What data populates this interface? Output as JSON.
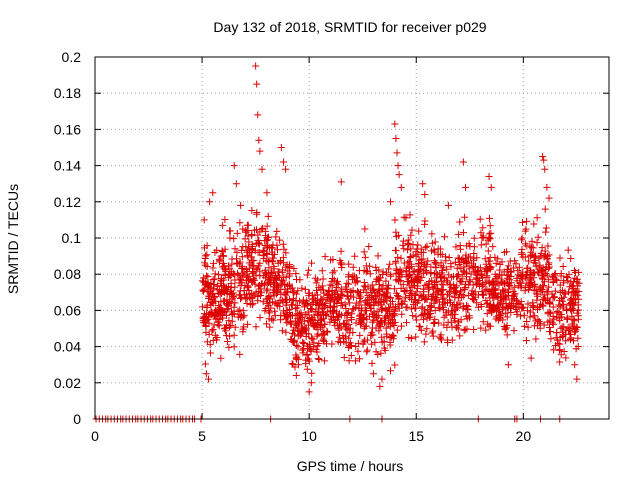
{
  "chart_data": {
    "type": "scatter",
    "title": "Day 132 of 2018, SRMTID for receiver p029",
    "xlabel": "GPS time / hours",
    "ylabel": "SRMTID / TECUs",
    "xlim": [
      0,
      24
    ],
    "ylim": [
      0,
      0.2
    ],
    "grid": true,
    "marker": "+",
    "xticks": [
      0,
      5,
      10,
      15,
      20
    ],
    "xtick_labels": [
      "0",
      "5",
      "10",
      "15",
      "20"
    ],
    "yticks": [
      0,
      0.02,
      0.04,
      0.06,
      0.08,
      0.1,
      0.12,
      0.14,
      0.16,
      0.18,
      0.2
    ],
    "ytick_labels": [
      "0",
      "0.02",
      "0.04",
      "0.06",
      "0.08",
      "0.1",
      "0.12",
      "0.14",
      "0.16",
      "0.18",
      "0.2"
    ],
    "series": [
      {
        "name": "SRMTID p029",
        "color": "#dd0000",
        "zero_x": [
          0.05,
          0.2,
          0.35,
          0.5,
          0.6,
          0.75,
          0.9,
          1.05,
          1.2,
          1.3,
          1.45,
          1.6,
          1.75,
          1.9,
          2.0,
          2.15,
          2.3,
          2.45,
          2.6,
          2.7,
          2.85,
          3.0,
          3.15,
          3.3,
          3.4,
          3.55,
          3.7,
          3.85,
          4.0,
          4.1,
          4.25,
          4.4,
          4.55,
          4.65,
          4.95,
          8.2,
          11.9,
          13.4,
          17.9,
          19.6,
          19.7,
          20.8,
          21.7
        ],
        "x": [
          5.1,
          5.15,
          5.2,
          5.3,
          5.35,
          5.5,
          5.6,
          5.7,
          6.5,
          6.6,
          6.8,
          6.9,
          7.5,
          7.55,
          7.6,
          7.65,
          7.7,
          7.8,
          8.7,
          8.8,
          8.9,
          9.4,
          9.5,
          10.0,
          10.1,
          11.5,
          12.6,
          13.0,
          13.3,
          13.4,
          13.8,
          14.0,
          14.05,
          14.1,
          14.15,
          14.2,
          14.3,
          15.3,
          15.4,
          16.5,
          17.2,
          17.3,
          18.4,
          18.5,
          19.3,
          20.9,
          20.95,
          21.0,
          21.1,
          21.2,
          22.4,
          22.5
        ],
        "y": [
          0.11,
          0.085,
          0.025,
          0.022,
          0.12,
          0.125,
          0.092,
          0.045,
          0.14,
          0.13,
          0.118,
          0.105,
          0.195,
          0.185,
          0.168,
          0.154,
          0.148,
          0.138,
          0.15,
          0.142,
          0.138,
          0.024,
          0.03,
          0.015,
          0.02,
          0.131,
          0.105,
          0.025,
          0.018,
          0.022,
          0.12,
          0.163,
          0.155,
          0.147,
          0.14,
          0.135,
          0.128,
          0.13,
          0.124,
          0.118,
          0.142,
          0.128,
          0.134,
          0.128,
          0.03,
          0.145,
          0.143,
          0.138,
          0.128,
          0.122,
          0.03,
          0.022
        ]
      }
    ],
    "bulk_bands": [
      {
        "x_range": [
          5.0,
          5.9
        ],
        "y_range": [
          0.025,
          0.11
        ],
        "count": 130
      },
      {
        "x_range": [
          5.9,
          7.0
        ],
        "y_range": [
          0.025,
          0.12
        ],
        "count": 150
      },
      {
        "x_range": [
          7.0,
          8.1
        ],
        "y_range": [
          0.04,
          0.13
        ],
        "count": 150
      },
      {
        "x_range": [
          8.1,
          9.1
        ],
        "y_range": [
          0.035,
          0.11
        ],
        "count": 140
      },
      {
        "x_range": [
          9.1,
          10.5
        ],
        "y_range": [
          0.02,
          0.09
        ],
        "count": 180
      },
      {
        "x_range": [
          10.5,
          12.5
        ],
        "y_range": [
          0.025,
          0.1
        ],
        "count": 230
      },
      {
        "x_range": [
          12.5,
          14.0
        ],
        "y_range": [
          0.02,
          0.1
        ],
        "count": 190
      },
      {
        "x_range": [
          14.0,
          15.5
        ],
        "y_range": [
          0.035,
          0.12
        ],
        "count": 190
      },
      {
        "x_range": [
          15.5,
          17.0
        ],
        "y_range": [
          0.03,
          0.11
        ],
        "count": 180
      },
      {
        "x_range": [
          17.0,
          18.5
        ],
        "y_range": [
          0.04,
          0.12
        ],
        "count": 180
      },
      {
        "x_range": [
          18.5,
          19.9
        ],
        "y_range": [
          0.04,
          0.1
        ],
        "count": 160
      },
      {
        "x_range": [
          19.9,
          21.2
        ],
        "y_range": [
          0.03,
          0.12
        ],
        "count": 170
      },
      {
        "x_range": [
          21.2,
          22.6
        ],
        "y_range": [
          0.025,
          0.1
        ],
        "count": 170
      }
    ]
  }
}
